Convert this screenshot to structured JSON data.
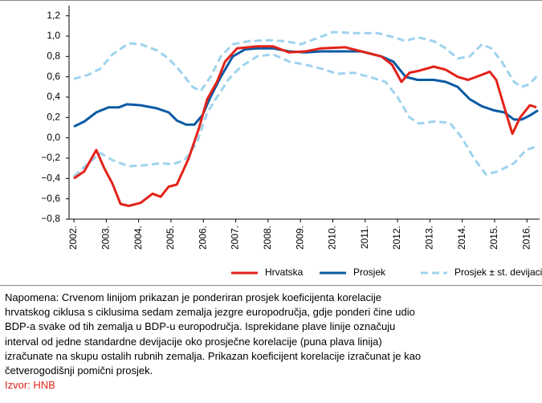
{
  "chart_data": {
    "type": "line",
    "xlim": [
      2001.85,
      2016.39
    ],
    "xticks": [
      {
        "value": 2002,
        "label": "2002."
      },
      {
        "value": 2003,
        "label": "2003."
      },
      {
        "value": 2004,
        "label": "2004."
      },
      {
        "value": 2005,
        "label": "2005."
      },
      {
        "value": 2006,
        "label": "2006."
      },
      {
        "value": 2007,
        "label": "2007."
      },
      {
        "value": 2008,
        "label": "2008."
      },
      {
        "value": 2009,
        "label": "2009."
      },
      {
        "value": 2010,
        "label": "2010."
      },
      {
        "value": 2011,
        "label": "2011."
      },
      {
        "value": 2012,
        "label": "2012."
      },
      {
        "value": 2013,
        "label": "2013."
      },
      {
        "value": 2014,
        "label": "2014."
      },
      {
        "value": 2015,
        "label": "2015."
      },
      {
        "value": 2016,
        "label": "2016."
      }
    ],
    "ylim": [
      -0.8,
      1.3
    ],
    "yticks": [
      {
        "value": -0.8,
        "label": "−0,8"
      },
      {
        "value": -0.6,
        "label": "−0,6"
      },
      {
        "value": -0.4,
        "label": "−0,4"
      },
      {
        "value": -0.2,
        "label": "−0,2"
      },
      {
        "value": 0,
        "label": "0,0"
      },
      {
        "value": 0.2,
        "label": "0,2"
      },
      {
        "value": 0.4,
        "label": "0,4"
      },
      {
        "value": 0.6,
        "label": "0,6"
      },
      {
        "value": 0.8,
        "label": "0,8"
      },
      {
        "value": 1.0,
        "label": "1,0"
      },
      {
        "value": 1.2,
        "label": "1,2"
      }
    ],
    "grid": false,
    "series": [
      {
        "name": "Hrvatska",
        "color": "#e2231a",
        "dash": false,
        "x": [
          2002.0,
          2002.32,
          2002.69,
          2002.94,
          2003.19,
          2003.44,
          2003.69,
          2004.06,
          2004.43,
          2004.68,
          2004.93,
          2005.18,
          2005.55,
          2005.87,
          2006.12,
          2006.42,
          2006.67,
          2007.04,
          2007.66,
          2008.15,
          2008.65,
          2009.15,
          2009.64,
          2010.39,
          2010.88,
          2011.5,
          2011.83,
          2012.12,
          2012.37,
          2012.67,
          2013.12,
          2013.49,
          2013.86,
          2014.18,
          2014.61,
          2014.85,
          2015.05,
          2015.3,
          2015.55,
          2015.79,
          2016.09,
          2016.29
        ],
        "values": [
          -0.4,
          -0.33,
          -0.12,
          -0.3,
          -0.45,
          -0.65,
          -0.67,
          -0.64,
          -0.55,
          -0.58,
          -0.48,
          -0.46,
          -0.2,
          0.1,
          0.38,
          0.55,
          0.75,
          0.88,
          0.9,
          0.9,
          0.84,
          0.85,
          0.88,
          0.89,
          0.85,
          0.8,
          0.72,
          0.55,
          0.64,
          0.66,
          0.7,
          0.67,
          0.6,
          0.57,
          0.62,
          0.65,
          0.57,
          0.3,
          0.04,
          0.2,
          0.32,
          0.3
        ]
      },
      {
        "name": "Prosjek",
        "color": "#0b5aa4",
        "dash": false,
        "x": [
          2002.0,
          2002.32,
          2002.69,
          2003.07,
          2003.39,
          2003.64,
          2004.06,
          2004.56,
          2004.93,
          2005.18,
          2005.47,
          2005.72,
          2005.97,
          2006.22,
          2006.54,
          2006.91,
          2007.29,
          2007.66,
          2008.15,
          2008.65,
          2009.15,
          2009.64,
          2010.39,
          2010.88,
          2011.5,
          2011.87,
          2012.25,
          2012.62,
          2013.12,
          2013.49,
          2013.86,
          2014.23,
          2014.61,
          2014.98,
          2015.3,
          2015.6,
          2015.84,
          2016.09,
          2016.34
        ],
        "values": [
          0.11,
          0.16,
          0.25,
          0.3,
          0.3,
          0.33,
          0.32,
          0.29,
          0.25,
          0.17,
          0.13,
          0.13,
          0.22,
          0.4,
          0.6,
          0.8,
          0.87,
          0.88,
          0.88,
          0.85,
          0.84,
          0.85,
          0.85,
          0.85,
          0.8,
          0.75,
          0.6,
          0.57,
          0.57,
          0.55,
          0.5,
          0.38,
          0.31,
          0.27,
          0.25,
          0.18,
          0.18,
          0.22,
          0.27
        ]
      },
      {
        "name": "Prosjek ± st. devijacija",
        "color": "#9fd3ee",
        "dash": true,
        "x": [
          2002.0,
          2002.45,
          2002.82,
          2003.19,
          2003.69,
          2004.06,
          2004.56,
          2004.93,
          2005.3,
          2005.67,
          2005.92,
          2006.22,
          2006.54,
          2006.91,
          2007.41,
          2008.03,
          2008.53,
          2009.02,
          2009.52,
          2010.01,
          2010.64,
          2011.38,
          2011.88,
          2012.25,
          2012.62,
          2013.12,
          2013.49,
          2013.86,
          2014.23,
          2014.61,
          2014.9,
          2015.22,
          2015.6,
          2015.84,
          2016.09,
          2016.34
        ],
        "values": [
          0.58,
          0.62,
          0.68,
          0.82,
          0.93,
          0.92,
          0.86,
          0.78,
          0.65,
          0.5,
          0.46,
          0.6,
          0.8,
          0.92,
          0.95,
          0.96,
          0.95,
          0.92,
          0.98,
          1.04,
          1.03,
          1.03,
          0.99,
          0.95,
          0.99,
          0.95,
          0.88,
          0.78,
          0.8,
          0.92,
          0.88,
          0.75,
          0.55,
          0.5,
          0.53,
          0.62
        ],
        "lower_x": [
          2002.0,
          2002.45,
          2002.82,
          2003.19,
          2003.69,
          2004.18,
          2004.68,
          2005.05,
          2005.42,
          2005.8,
          2006.12,
          2006.42,
          2006.79,
          2007.16,
          2007.66,
          2008.15,
          2008.65,
          2009.15,
          2009.64,
          2010.14,
          2010.64,
          2011.13,
          2011.63,
          2012.0,
          2012.37,
          2012.67,
          2013.12,
          2013.61,
          2013.99,
          2014.36,
          2014.73,
          2015.1,
          2015.6,
          2015.97,
          2016.34
        ],
        "lower_values": [
          -0.38,
          -0.25,
          -0.15,
          -0.22,
          -0.28,
          -0.27,
          -0.25,
          -0.26,
          -0.22,
          -0.05,
          0.25,
          0.4,
          0.58,
          0.7,
          0.8,
          0.82,
          0.75,
          0.72,
          0.68,
          0.63,
          0.64,
          0.6,
          0.55,
          0.4,
          0.2,
          0.14,
          0.16,
          0.15,
          0.0,
          -0.2,
          -0.36,
          -0.33,
          -0.25,
          -0.12,
          -0.08
        ]
      }
    ]
  },
  "note": [
    "Napomena: Crvenom linijom prikazan je ponderiran prosjek koeficijenta korelacije",
    "hrvatskog ciklusa s ciklusima sedam zemalja jezgre europodručja, gdje ponderi čine udio",
    "BDP-a svake od tih zemalja u BDP-u europodručja. Isprekidane plave linije označuju",
    "interval od jedne standardne devijacije oko prosječne korelacije (puna plava linija)",
    "izračunate na skupu ostalih rubnih zemalja. Prikazan koeficijent korelacije izračunat je kao",
    "četverogodišnji pomični prosjek."
  ],
  "source": "Izvor: HNB"
}
